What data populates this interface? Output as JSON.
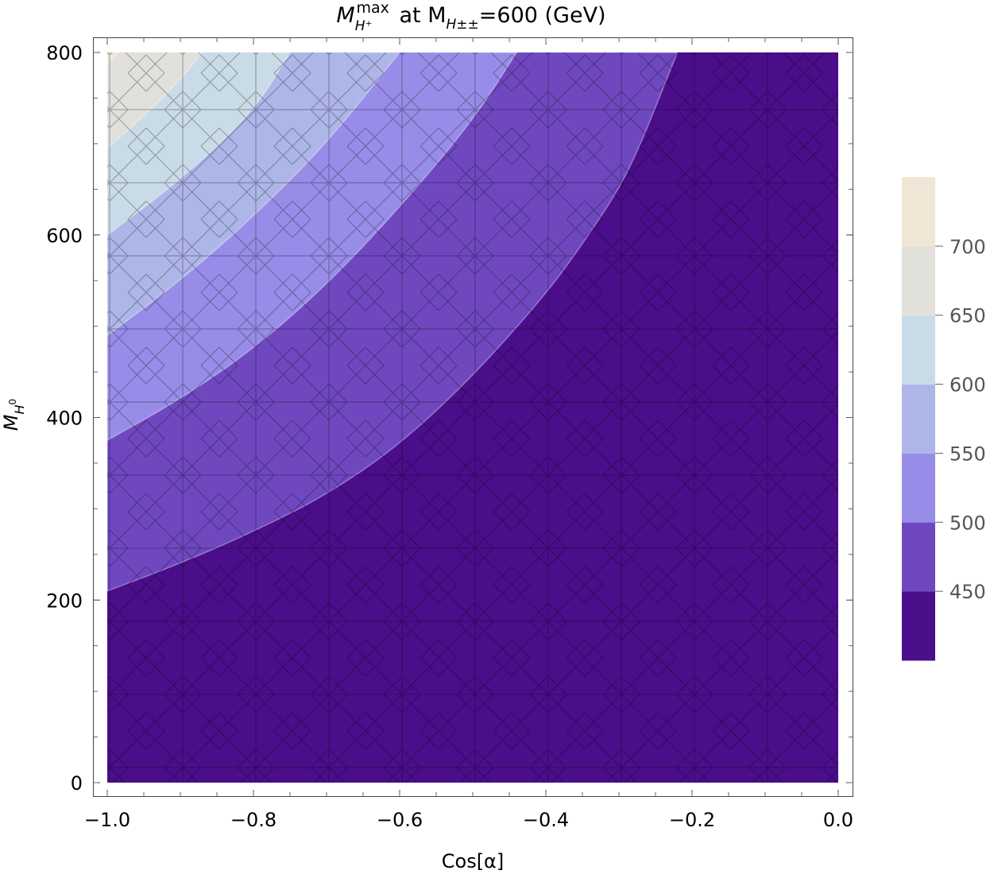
{
  "chart_data": {
    "type": "contour",
    "title": {
      "main": "M",
      "main_sub": "H⁺",
      "main_sup": "max",
      "middle": " at M",
      "middle_sub": "H±±",
      "end": "=600 (GeV)"
    },
    "xlabel": "Cos[α]",
    "ylabel": {
      "main": "M",
      "sub": "H",
      "subsup": "0"
    },
    "xlim": [
      -1.0,
      0.0
    ],
    "ylim": [
      0,
      800
    ],
    "xticks": [
      -1.0,
      -0.8,
      -0.6,
      -0.4,
      -0.2,
      0.0
    ],
    "xtick_labels": [
      "−1.0",
      "−0.8",
      "−0.6",
      "−0.4",
      "−0.2",
      "0.0"
    ],
    "yticks": [
      0,
      200,
      400,
      600,
      800
    ],
    "ytick_labels": [
      "0",
      "200",
      "400",
      "600",
      "800"
    ],
    "contour_levels": [
      450,
      500,
      550,
      600,
      650,
      700
    ],
    "legend_labels": [
      "450",
      "500",
      "550",
      "600",
      "650",
      "700"
    ],
    "legend_position": "right",
    "band_colors": [
      "#4a0e8a",
      "#6f48c0",
      "#978de8",
      "#aeb6e8",
      "#c9dbe6",
      "#e2e0da",
      "#efe6d6"
    ],
    "boundaries": [
      {
        "level": 450,
        "points": [
          [
            -1.0,
            210
          ],
          [
            -0.9,
            240
          ],
          [
            -0.8,
            275
          ],
          [
            -0.7,
            315
          ],
          [
            -0.6,
            370
          ],
          [
            -0.5,
            445
          ],
          [
            -0.4,
            535
          ],
          [
            -0.35,
            590
          ],
          [
            -0.3,
            650
          ],
          [
            -0.27,
            700
          ],
          [
            -0.24,
            760
          ],
          [
            -0.22,
            800
          ]
        ]
      },
      {
        "level": 500,
        "points": [
          [
            -1.0,
            375
          ],
          [
            -0.9,
            420
          ],
          [
            -0.8,
            475
          ],
          [
            -0.7,
            545
          ],
          [
            -0.6,
            630
          ],
          [
            -0.5,
            725
          ],
          [
            -0.44,
            800
          ]
        ]
      },
      {
        "level": 550,
        "points": [
          [
            -1.0,
            490
          ],
          [
            -0.9,
            550
          ],
          [
            -0.8,
            620
          ],
          [
            -0.7,
            700
          ],
          [
            -0.6,
            800
          ]
        ]
      },
      {
        "level": 600,
        "points": [
          [
            -1.0,
            600
          ],
          [
            -0.9,
            660
          ],
          [
            -0.8,
            735
          ],
          [
            -0.75,
            800
          ]
        ]
      },
      {
        "level": 650,
        "points": [
          [
            -1.0,
            695
          ],
          [
            -0.95,
            730
          ],
          [
            -0.9,
            770
          ],
          [
            -0.87,
            800
          ]
        ]
      },
      {
        "level": 700,
        "points": [
          [
            -1.0,
            788
          ],
          [
            -0.985,
            800
          ]
        ]
      }
    ]
  }
}
